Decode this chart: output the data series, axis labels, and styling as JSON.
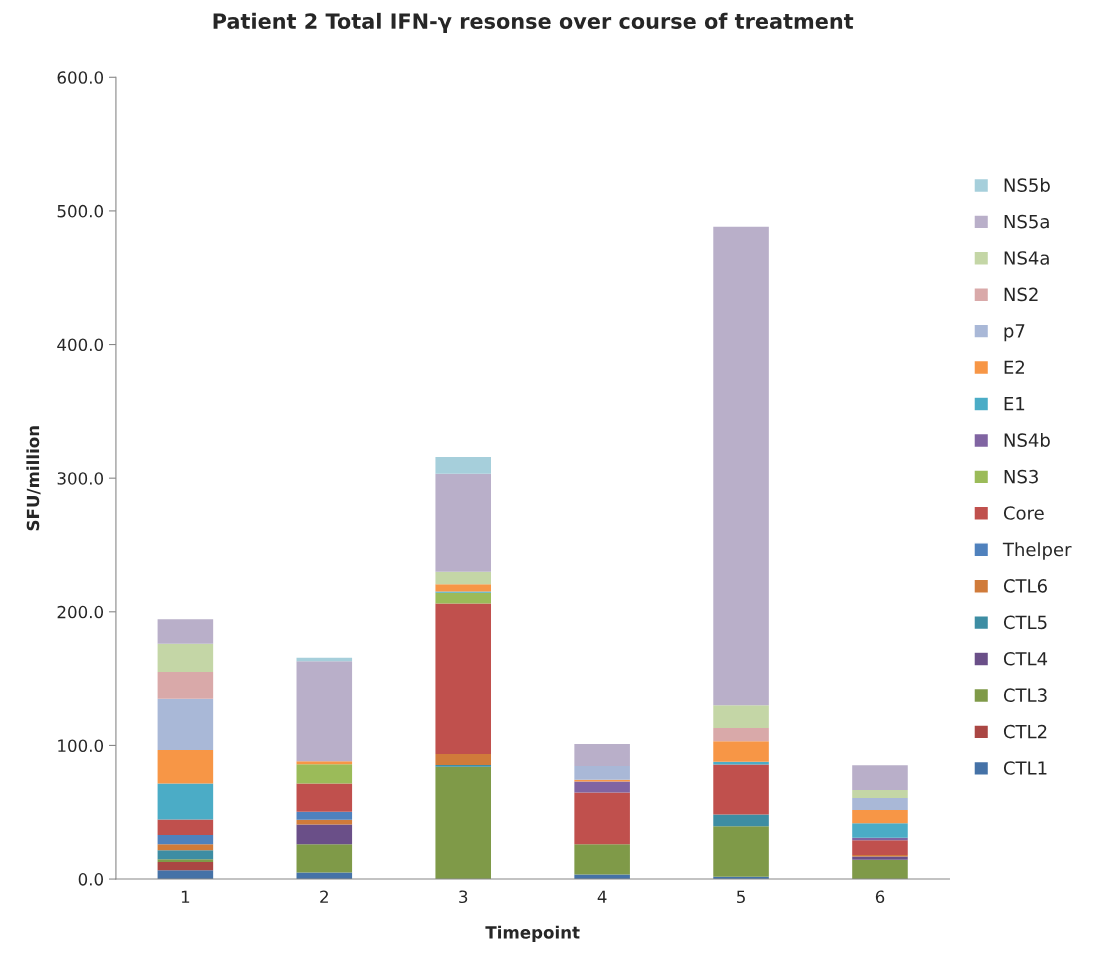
{
  "chart_data": {
    "type": "bar",
    "stacked": true,
    "title": "Patient 2 Total IFN-γ resonse over course of treatment",
    "xlabel": "Timepoint",
    "ylabel": "SFU/million",
    "categories": [
      "1",
      "2",
      "3",
      "4",
      "5",
      "6"
    ],
    "ylim": [
      0,
      600
    ],
    "yticks": [
      {
        "value": 0,
        "label": "0.0"
      },
      {
        "value": 100,
        "label": "100.0"
      },
      {
        "value": 200,
        "label": "200.0"
      },
      {
        "value": 300,
        "label": "300.0"
      },
      {
        "value": 400,
        "label": "400.0"
      },
      {
        "value": 500,
        "label": "500.0"
      },
      {
        "value": 600,
        "label": "600.0"
      }
    ],
    "grid": false,
    "legend": "right",
    "series": [
      {
        "name": "CTL1",
        "color": "#4572a7",
        "values": [
          6.5,
          5.0,
          0,
          3.5,
          1.7,
          0
        ]
      },
      {
        "name": "CTL2",
        "color": "#aa4643",
        "values": [
          6.3,
          0,
          0,
          0,
          0,
          0
        ]
      },
      {
        "name": "CTL3",
        "color": "#7f9a48",
        "values": [
          2.0,
          21.0,
          84.1,
          22.5,
          37.9,
          14.5
        ]
      },
      {
        "name": "CTL4",
        "color": "#6a4f88",
        "values": [
          0,
          14.8,
          0,
          0,
          0,
          2.3
        ]
      },
      {
        "name": "CTL5",
        "color": "#3d8da3",
        "values": [
          6.7,
          0,
          1.3,
          0,
          8.7,
          0
        ]
      },
      {
        "name": "CTL6",
        "color": "#d07b3a",
        "values": [
          4.5,
          3.5,
          8.2,
          0,
          0,
          1.2
        ]
      },
      {
        "name": "Thelper",
        "color": "#4f81bd",
        "values": [
          7.0,
          6.0,
          0,
          0,
          0,
          0
        ]
      },
      {
        "name": "Core",
        "color": "#c0504d",
        "values": [
          11.5,
          21.2,
          112.6,
          38.8,
          37.5,
          11.0
        ]
      },
      {
        "name": "NS3",
        "color": "#9bbb59",
        "values": [
          0,
          14.5,
          8.0,
          0,
          0,
          0
        ]
      },
      {
        "name": "NS4b",
        "color": "#8064a2",
        "values": [
          0,
          0,
          0,
          8.2,
          0,
          2.0
        ]
      },
      {
        "name": "E1",
        "color": "#4bacc6",
        "values": [
          27.0,
          0,
          1.0,
          0,
          2.0,
          10.8
        ]
      },
      {
        "name": "E2",
        "color": "#f79646",
        "values": [
          25.0,
          2.2,
          5.5,
          1.3,
          15.3,
          9.8
        ]
      },
      {
        "name": "p7",
        "color": "#a9b8d7",
        "values": [
          38.5,
          0,
          0,
          10.3,
          0,
          9.0
        ]
      },
      {
        "name": "NS2",
        "color": "#d9a9a9",
        "values": [
          20.0,
          0,
          0,
          0,
          10.0,
          0
        ]
      },
      {
        "name": "NS4a",
        "color": "#c4d6a6",
        "values": [
          21.0,
          0,
          9.3,
          0,
          17.0,
          6.0
        ]
      },
      {
        "name": "NS5a",
        "color": "#b9afc9",
        "values": [
          18.5,
          74.8,
          73.3,
          16.5,
          358.0,
          18.5
        ]
      },
      {
        "name": "NS5b",
        "color": "#a6cfdb",
        "values": [
          0,
          2.7,
          12.5,
          0,
          0,
          0
        ]
      }
    ]
  }
}
